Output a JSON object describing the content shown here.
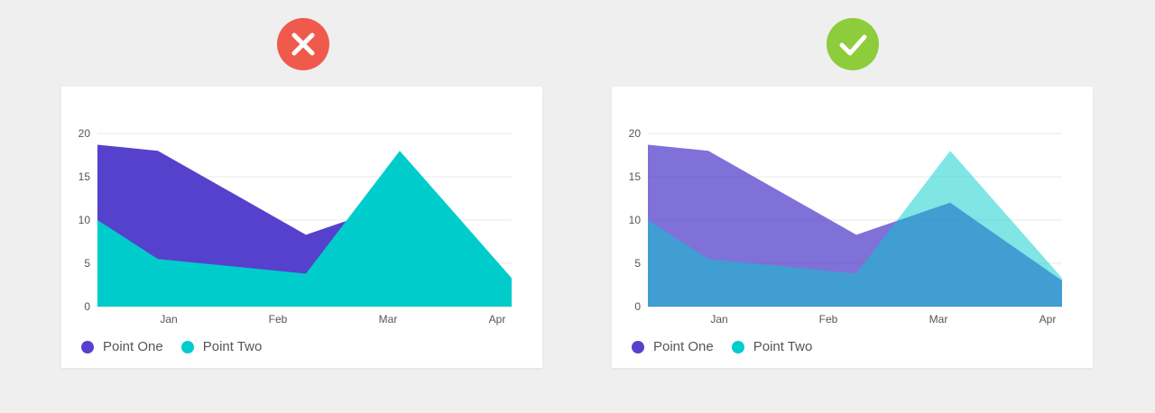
{
  "badges": {
    "bad": {
      "icon": "x-icon",
      "color": "#f05a4c"
    },
    "good": {
      "icon": "check-icon",
      "color": "#8dcc3a"
    }
  },
  "chart_data": [
    {
      "type": "area",
      "variant": "opaque overlapping areas",
      "x": [
        "Dec 20",
        "Jan",
        "Feb 10",
        "Mar 5",
        "Apr 5"
      ],
      "x_ticks": [
        "Jan",
        "Feb",
        "Mar",
        "Apr"
      ],
      "series": [
        {
          "name": "Point One",
          "color": "#5641cc",
          "opacity": 1.0,
          "values": [
            18.7,
            18.0,
            8.3,
            12.0,
            3.0
          ]
        },
        {
          "name": "Point Two",
          "color": "#00cccc",
          "opacity": 1.0,
          "values": [
            10.0,
            5.5,
            3.8,
            18.0,
            3.3
          ]
        }
      ],
      "y_ticks": [
        0,
        5,
        10,
        15,
        20
      ],
      "ylim": [
        0,
        20
      ],
      "grid": true,
      "legend": "bottom-left"
    },
    {
      "type": "area",
      "variant": "semi-transparent overlapping areas",
      "x": [
        "Dec 20",
        "Jan",
        "Feb 10",
        "Mar 5",
        "Apr 5"
      ],
      "x_ticks": [
        "Jan",
        "Feb",
        "Mar",
        "Apr"
      ],
      "series": [
        {
          "name": "Point One",
          "color": "#5641cc",
          "opacity": 0.75,
          "values": [
            18.7,
            18.0,
            8.3,
            12.0,
            3.0
          ]
        },
        {
          "name": "Point Two",
          "color": "#00cccc",
          "opacity": 0.5,
          "values": [
            10.0,
            5.5,
            3.8,
            18.0,
            3.3
          ]
        }
      ],
      "y_ticks": [
        0,
        5,
        10,
        15,
        20
      ],
      "ylim": [
        0,
        20
      ],
      "grid": true,
      "legend": "bottom-left"
    }
  ]
}
